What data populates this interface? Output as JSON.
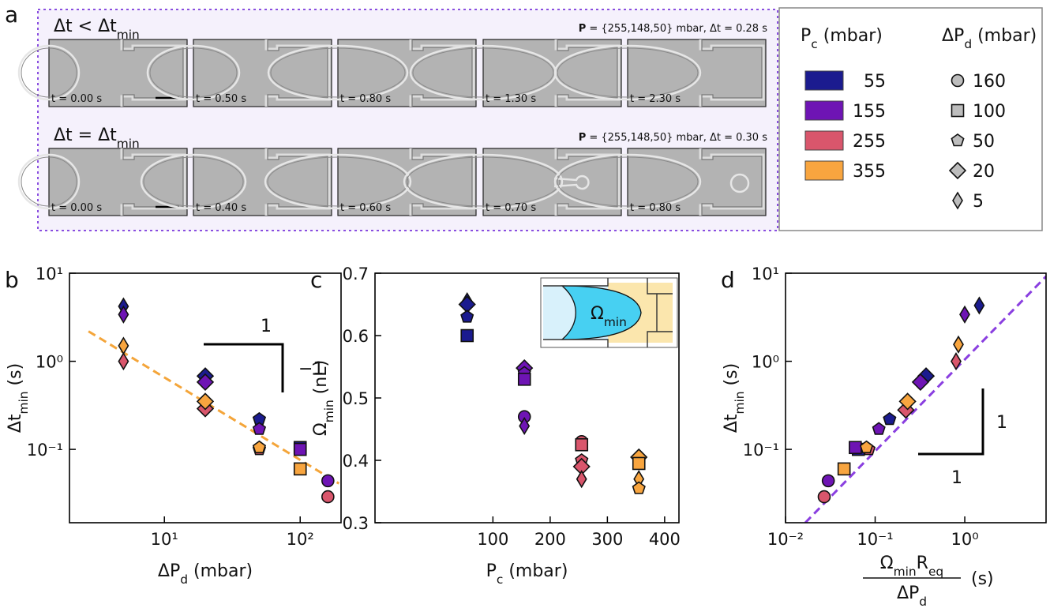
{
  "panel_a": {
    "label": "a",
    "rows": [
      {
        "title": [
          {
            "text": "Δt < Δt"
          },
          {
            "text": "min",
            "sub": true
          }
        ],
        "info": [
          {
            "text": "P",
            "bold": true
          },
          {
            "text": " = {255,148,50} mbar, Δt = 0.28 s"
          }
        ],
        "frames": [
          "t = 0.00 s",
          "t = 0.50 s",
          "t = 0.80 s",
          "t = 1.30 s",
          "t = 2.30 s"
        ]
      },
      {
        "title": [
          {
            "text": "Δt = Δt"
          },
          {
            "text": "min",
            "sub": true
          }
        ],
        "info": [
          {
            "text": "P",
            "bold": true
          },
          {
            "text": " = {255,148,50} mbar, Δt = 0.30 s"
          }
        ],
        "frames": [
          "t = 0.00 s",
          "t = 0.40 s",
          "t = 0.60 s",
          "t = 0.70 s",
          "t = 0.80 s"
        ]
      }
    ]
  },
  "legend": {
    "color_title": [
      {
        "text": "P"
      },
      {
        "text": "c",
        "sub": true
      },
      {
        "text": " (mbar)"
      }
    ],
    "colors": [
      {
        "value": 55,
        "color": "#1b1b8f"
      },
      {
        "value": 155,
        "color": "#6e14b4"
      },
      {
        "value": 255,
        "color": "#d9566c"
      },
      {
        "value": 355,
        "color": "#f8a53f"
      }
    ],
    "marker_title": [
      {
        "text": "ΔP"
      },
      {
        "text": "d",
        "sub": true
      },
      {
        "text": " (mbar)"
      }
    ],
    "markers": [
      {
        "value": 160,
        "shape": "circle"
      },
      {
        "value": 100,
        "shape": "square"
      },
      {
        "value": 50,
        "shape": "pentagon"
      },
      {
        "value": 20,
        "shape": "diamond"
      },
      {
        "value": 5,
        "shape": "thin_diamond"
      }
    ]
  },
  "chart_data": [
    {
      "type": "scatter",
      "label": "b",
      "xscale": "log",
      "yscale": "log",
      "xlim": [
        2,
        200
      ],
      "ylim": [
        0.0147,
        10
      ],
      "xticks": [
        {
          "value": 10,
          "label": "10¹"
        },
        {
          "value": 100,
          "label": "10²"
        }
      ],
      "yticks": [
        {
          "value": 0.1,
          "label": "10⁻¹"
        },
        {
          "value": 1,
          "label": "10⁰"
        },
        {
          "value": 10,
          "label": "10¹"
        }
      ],
      "xlabel": [
        {
          "text": "ΔP"
        },
        {
          "text": "d",
          "sub": true
        },
        {
          "text": " (mbar)"
        }
      ],
      "ylabel": [
        {
          "text": "Δt"
        },
        {
          "text": "min",
          "sub": true
        },
        {
          "text": " (s)"
        }
      ],
      "series": [
        {
          "color": "#1b1b8f",
          "x": [
            5,
            20,
            50,
            100
          ],
          "values": [
            4.2,
            0.68,
            0.22,
            0.105
          ]
        },
        {
          "color": "#6e14b4",
          "x": [
            5,
            20,
            50,
            100,
            160
          ],
          "values": [
            3.4,
            0.58,
            0.17,
            0.1,
            0.044
          ]
        },
        {
          "color": "#d9566c",
          "x": [
            5,
            20,
            50,
            160
          ],
          "values": [
            1.0,
            0.29,
            0.1,
            0.029
          ]
        },
        {
          "color": "#f8a53f",
          "x": [
            5,
            20,
            50,
            100
          ],
          "values": [
            1.5,
            0.35,
            0.105,
            0.06
          ]
        }
      ],
      "fit_line": {
        "color": "#f4a53a",
        "x": [
          2.76,
          193
        ],
        "values": [
          2.19,
          0.041
        ]
      },
      "annotations": [
        "1",
        "−1"
      ]
    },
    {
      "type": "scatter",
      "label": "c",
      "xscale": "linear",
      "yscale": "linear",
      "xlim": [
        -106,
        425
      ],
      "ylim": [
        0.3,
        0.7
      ],
      "xticks": [
        100,
        200,
        300,
        400
      ],
      "yticks": [
        0.3,
        0.4,
        0.5,
        0.6,
        0.7
      ],
      "xlabel": [
        {
          "text": "P"
        },
        {
          "text": "c",
          "sub": true
        },
        {
          "text": " (mbar)"
        }
      ],
      "ylabel": [
        {
          "text": "Ω"
        },
        {
          "text": "min",
          "sub": true
        },
        {
          "text": " (nL)"
        }
      ],
      "inset_label": [
        {
          "text": "Ω"
        },
        {
          "text": "min",
          "sub": true
        }
      ],
      "series": [
        {
          "color": "#1b1b8f",
          "x": [
            55,
            55,
            55,
            55
          ],
          "dp": [
            5,
            20,
            50,
            100
          ],
          "values": [
            0.655,
            0.65,
            0.63,
            0.6
          ]
        },
        {
          "color": "#6e14b4",
          "x": [
            155,
            155,
            155,
            155,
            155
          ],
          "dp": [
            20,
            50,
            100,
            160,
            5
          ],
          "values": [
            0.548,
            0.54,
            0.53,
            0.47,
            0.455
          ]
        },
        {
          "color": "#d9566c",
          "x": [
            255,
            255,
            255,
            255,
            255
          ],
          "dp": [
            160,
            100,
            50,
            20,
            5
          ],
          "values": [
            0.43,
            0.425,
            0.4,
            0.39,
            0.37
          ]
        },
        {
          "color": "#f8a53f",
          "x": [
            355,
            355,
            355,
            355
          ],
          "dp": [
            20,
            100,
            5,
            50
          ],
          "values": [
            0.405,
            0.395,
            0.37,
            0.355
          ]
        }
      ]
    },
    {
      "type": "scatter",
      "label": "d",
      "xscale": "log",
      "yscale": "log",
      "xlim": [
        0.01,
        8.07
      ],
      "ylim": [
        0.0147,
        10
      ],
      "xticks": [
        {
          "value": 0.01,
          "label": "10⁻²"
        },
        {
          "value": 0.1,
          "label": "10⁻¹"
        },
        {
          "value": 1,
          "label": "10⁰"
        }
      ],
      "yticks": [
        {
          "value": 0.1,
          "label": "10⁻¹"
        },
        {
          "value": 1,
          "label": "10⁰"
        },
        {
          "value": 10,
          "label": "10¹"
        }
      ],
      "xlabel": {
        "numerator": [
          {
            "text": "Ω"
          },
          {
            "text": "min",
            "sub": true
          },
          {
            "text": "R"
          },
          {
            "text": "eq",
            "sub": true
          }
        ],
        "denominator": [
          {
            "text": "ΔP"
          },
          {
            "text": "d",
            "sub": true
          }
        ],
        "unit": "(s)"
      },
      "ylabel": [
        {
          "text": "Δt"
        },
        {
          "text": "min",
          "sub": true
        },
        {
          "text": " (s)"
        }
      ],
      "series": [
        {
          "color": "#1b1b8f",
          "x": [
            1.45,
            0.37,
            0.145,
            0.065
          ],
          "dp": [
            5,
            20,
            50,
            100
          ],
          "values": [
            4.3,
            0.68,
            0.22,
            0.1
          ]
        },
        {
          "color": "#6e14b4",
          "x": [
            1.0,
            0.32,
            0.11,
            0.06,
            0.03
          ],
          "dp": [
            5,
            20,
            50,
            100,
            160
          ],
          "values": [
            3.4,
            0.58,
            0.17,
            0.105,
            0.044
          ]
        },
        {
          "color": "#d9566c",
          "x": [
            0.8,
            0.22,
            0.085,
            0.027
          ],
          "dp": [
            5,
            20,
            50,
            160
          ],
          "values": [
            1.0,
            0.28,
            0.1,
            0.029
          ]
        },
        {
          "color": "#f8a53f",
          "x": [
            0.85,
            0.23,
            0.08,
            0.045
          ],
          "dp": [
            5,
            20,
            50,
            100
          ],
          "values": [
            1.55,
            0.35,
            0.105,
            0.06
          ]
        }
      ],
      "fit_line": {
        "color": "#8a3fe0",
        "x": [
          0.0166,
          8.07
        ],
        "values": [
          0.0147,
          9.2
        ]
      },
      "annotations": [
        "1",
        "1"
      ]
    }
  ]
}
